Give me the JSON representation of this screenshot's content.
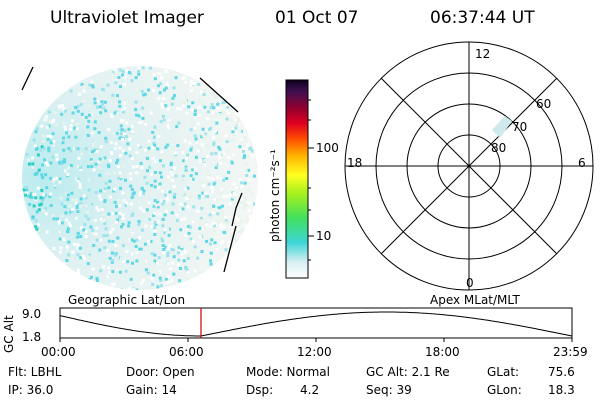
{
  "header": {
    "instrument": "Ultraviolet Imager",
    "date": "01 Oct 07",
    "time": "06:37:44 UT"
  },
  "colorbar": {
    "unit_label": "photon cm⁻²s⁻¹",
    "ticks": [
      "100",
      "10"
    ]
  },
  "polar_plot": {
    "mlt_labels": [
      "12",
      "18",
      "6",
      "0"
    ],
    "lat_labels": [
      "60",
      "70",
      "80"
    ]
  },
  "timeline": {
    "y_axis_label": "GC Alt",
    "y_ticks": [
      "9.0",
      "1.8"
    ],
    "left_title": "Geographic Lat/Lon",
    "right_title": "Apex MLat/MLT",
    "x_ticks": [
      "00:00",
      "06:00",
      "12:00",
      "18:00",
      "23:59"
    ],
    "marker_color": "#cc0000"
  },
  "status": {
    "flt": "Flt: LBHL",
    "ip": "IP: 36.0",
    "door": "Door: Open",
    "gain": "Gain: 14",
    "mode": "Mode: Normal",
    "dsp_label": "Dsp:",
    "dsp_value": "4.2",
    "gc_alt": "GC Alt: 2.1 Re",
    "seq": "Seq: 39",
    "glat_label": "GLat:",
    "glat_value": "75.6",
    "glon_label": "GLon:",
    "glon_value": "18.3"
  }
}
